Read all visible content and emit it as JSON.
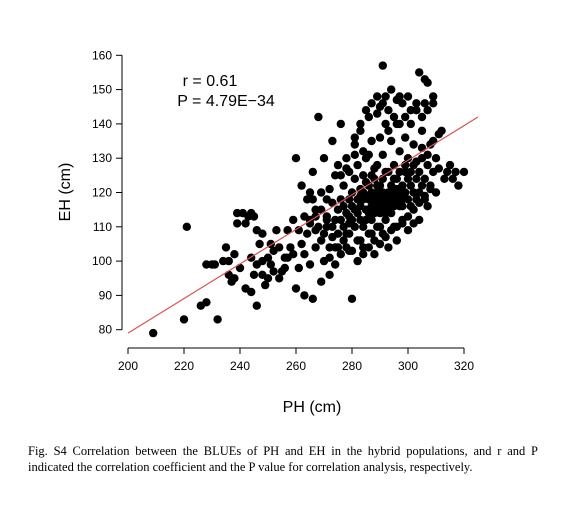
{
  "chart_data": {
    "type": "scatter",
    "xlabel": "PH (cm)",
    "ylabel": "EH (cm)",
    "xlim": [
      200,
      330
    ],
    "ylim": [
      77,
      163
    ],
    "xticks": [
      200,
      220,
      240,
      260,
      280,
      300,
      320
    ],
    "yticks": [
      80,
      90,
      100,
      110,
      120,
      130,
      140,
      150,
      160
    ],
    "annotation_r": "r = 0.61",
    "annotation_p": "P = 4.79E−34",
    "regression_line": {
      "x": [
        200,
        325
      ],
      "y": [
        79,
        142
      ],
      "color": "#d9534f"
    },
    "point_color": "#000000",
    "points": [
      [
        209,
        79
      ],
      [
        220,
        83
      ],
      [
        221,
        110
      ],
      [
        226,
        87
      ],
      [
        228,
        88
      ],
      [
        228,
        99
      ],
      [
        230,
        99
      ],
      [
        232,
        83
      ],
      [
        234,
        100
      ],
      [
        235,
        104
      ],
      [
        236,
        96
      ],
      [
        237,
        94
      ],
      [
        238,
        95
      ],
      [
        239,
        114
      ],
      [
        241,
        114
      ],
      [
        242,
        92
      ],
      [
        243,
        113
      ],
      [
        244,
        91
      ],
      [
        245,
        96
      ],
      [
        245,
        113
      ],
      [
        246,
        87
      ],
      [
        247,
        105
      ],
      [
        248,
        100
      ],
      [
        248,
        108
      ],
      [
        249,
        93
      ],
      [
        250,
        101
      ],
      [
        251,
        99
      ],
      [
        252,
        103
      ],
      [
        253,
        109
      ],
      [
        254,
        95
      ],
      [
        255,
        97
      ],
      [
        256,
        98
      ],
      [
        257,
        101
      ],
      [
        258,
        104
      ],
      [
        259,
        102
      ],
      [
        260,
        130
      ],
      [
        260,
        92
      ],
      [
        261,
        98
      ],
      [
        262,
        105
      ],
      [
        262,
        122
      ],
      [
        263,
        102
      ],
      [
        263,
        90
      ],
      [
        264,
        108
      ],
      [
        264,
        118
      ],
      [
        265,
        99
      ],
      [
        265,
        112
      ],
      [
        266,
        89
      ],
      [
        266,
        126
      ],
      [
        267,
        104
      ],
      [
        267,
        115
      ],
      [
        268,
        110
      ],
      [
        268,
        142
      ],
      [
        269,
        94
      ],
      [
        269,
        120
      ],
      [
        270,
        108
      ],
      [
        270,
        130
      ],
      [
        271,
        113
      ],
      [
        271,
        118
      ],
      [
        272,
        104
      ],
      [
        272,
        121
      ],
      [
        272,
        96
      ],
      [
        273,
        110
      ],
      [
        273,
        135
      ],
      [
        274,
        112
      ],
      [
        274,
        125
      ],
      [
        274,
        104
      ],
      [
        275,
        115
      ],
      [
        275,
        128
      ],
      [
        275,
        108
      ],
      [
        276,
        118
      ],
      [
        276,
        112
      ],
      [
        276,
        140
      ],
      [
        277,
        110
      ],
      [
        277,
        116
      ],
      [
        277,
        122
      ],
      [
        278,
        114
      ],
      [
        278,
        108
      ],
      [
        278,
        130
      ],
      [
        279,
        113
      ],
      [
        279,
        118
      ],
      [
        279,
        126
      ],
      [
        279,
        103
      ],
      [
        280,
        112
      ],
      [
        280,
        116
      ],
      [
        280,
        120
      ],
      [
        280,
        89
      ],
      [
        281,
        110
      ],
      [
        281,
        124
      ],
      [
        281,
        134
      ],
      [
        282,
        114
      ],
      [
        282,
        118
      ],
      [
        282,
        106
      ],
      [
        282,
        128
      ],
      [
        283,
        112
      ],
      [
        283,
        116
      ],
      [
        283,
        121
      ],
      [
        283,
        138
      ],
      [
        284,
        110
      ],
      [
        284,
        118
      ],
      [
        284,
        125
      ],
      [
        284,
        104
      ],
      [
        285,
        115
      ],
      [
        285,
        112
      ],
      [
        285,
        130
      ],
      [
        285,
        119
      ],
      [
        286,
        114
      ],
      [
        286,
        122
      ],
      [
        286,
        108
      ],
      [
        286,
        142
      ],
      [
        287,
        116
      ],
      [
        287,
        120
      ],
      [
        287,
        112
      ],
      [
        287,
        135
      ],
      [
        288,
        118
      ],
      [
        288,
        114
      ],
      [
        288,
        124
      ],
      [
        288,
        102
      ],
      [
        289,
        116
      ],
      [
        289,
        120
      ],
      [
        289,
        128
      ],
      [
        289,
        110
      ],
      [
        290,
        118
      ],
      [
        290,
        114
      ],
      [
        290,
        122
      ],
      [
        290,
        145
      ],
      [
        291,
        120
      ],
      [
        291,
        116
      ],
      [
        291,
        131
      ],
      [
        291,
        108
      ],
      [
        292,
        118
      ],
      [
        292,
        112
      ],
      [
        292,
        126
      ],
      [
        292,
        148
      ],
      [
        293,
        120
      ],
      [
        293,
        116
      ],
      [
        293,
        138
      ],
      [
        293,
        104
      ],
      [
        294,
        118
      ],
      [
        294,
        122
      ],
      [
        294,
        114
      ],
      [
        294,
        150
      ],
      [
        295,
        120
      ],
      [
        295,
        116
      ],
      [
        295,
        128
      ],
      [
        295,
        110
      ],
      [
        296,
        118
      ],
      [
        296,
        124
      ],
      [
        296,
        140
      ],
      [
        296,
        106
      ],
      [
        297,
        120
      ],
      [
        297,
        116
      ],
      [
        297,
        132
      ],
      [
        298,
        118
      ],
      [
        298,
        122
      ],
      [
        298,
        146
      ],
      [
        298,
        112
      ],
      [
        299,
        120
      ],
      [
        299,
        126
      ],
      [
        299,
        136
      ],
      [
        300,
        118
      ],
      [
        300,
        124
      ],
      [
        300,
        130
      ],
      [
        300,
        148
      ],
      [
        301,
        116
      ],
      [
        301,
        122
      ],
      [
        301,
        140
      ],
      [
        302,
        120
      ],
      [
        302,
        128
      ],
      [
        302,
        134
      ],
      [
        303,
        118
      ],
      [
        303,
        124
      ],
      [
        303,
        144
      ],
      [
        304,
        120
      ],
      [
        304,
        126
      ],
      [
        304,
        112
      ],
      [
        305,
        122
      ],
      [
        305,
        130
      ],
      [
        305,
        138
      ],
      [
        306,
        118
      ],
      [
        306,
        124
      ],
      [
        306,
        146
      ],
      [
        307,
        128
      ],
      [
        307,
        152
      ],
      [
        307,
        116
      ],
      [
        308,
        122
      ],
      [
        308,
        134
      ],
      [
        309,
        126
      ],
      [
        309,
        148
      ],
      [
        310,
        120
      ],
      [
        310,
        130
      ],
      [
        311,
        127
      ],
      [
        312,
        138
      ],
      [
        313,
        124
      ],
      [
        314,
        126
      ],
      [
        315,
        128
      ],
      [
        316,
        124
      ],
      [
        317,
        126
      ],
      [
        318,
        122
      ],
      [
        320,
        126
      ],
      [
        304,
        155
      ],
      [
        306,
        153
      ],
      [
        291,
        157
      ],
      [
        296,
        147
      ],
      [
        289,
        143
      ],
      [
        284,
        132
      ],
      [
        286,
        131
      ],
      [
        290,
        136
      ],
      [
        297,
        148
      ],
      [
        292,
        140
      ],
      [
        294,
        135
      ],
      [
        288,
        127
      ],
      [
        281,
        131
      ],
      [
        278,
        127
      ],
      [
        276,
        125
      ],
      [
        273,
        117
      ],
      [
        271,
        110
      ],
      [
        269,
        106
      ],
      [
        267,
        109
      ],
      [
        266,
        118
      ],
      [
        265,
        120
      ],
      [
        263,
        113
      ],
      [
        261,
        109
      ],
      [
        259,
        112
      ],
      [
        257,
        109
      ],
      [
        256,
        101
      ],
      [
        254,
        104
      ],
      [
        252,
        97
      ],
      [
        251,
        105
      ],
      [
        250,
        95
      ],
      [
        248,
        96
      ],
      [
        246,
        99
      ],
      [
        244,
        101
      ],
      [
        240,
        98
      ],
      [
        238,
        102
      ],
      [
        236,
        100
      ],
      [
        231,
        99
      ],
      [
        239,
        111
      ],
      [
        242,
        111
      ],
      [
        244,
        114
      ],
      [
        246,
        109
      ],
      [
        270,
        100
      ],
      [
        272,
        101
      ],
      [
        274,
        99
      ],
      [
        276,
        102
      ],
      [
        278,
        104
      ],
      [
        280,
        103
      ],
      [
        282,
        100
      ],
      [
        284,
        102
      ],
      [
        286,
        104
      ],
      [
        288,
        106
      ],
      [
        290,
        105
      ],
      [
        292,
        107
      ],
      [
        294,
        109
      ],
      [
        296,
        110
      ],
      [
        298,
        111
      ],
      [
        300,
        113
      ],
      [
        302,
        115
      ],
      [
        304,
        117
      ],
      [
        306,
        119
      ],
      [
        308,
        121
      ],
      [
        284,
        120
      ],
      [
        286,
        118
      ],
      [
        288,
        116
      ],
      [
        290,
        110
      ],
      [
        292,
        114
      ],
      [
        294,
        119
      ],
      [
        296,
        121
      ],
      [
        298,
        116
      ],
      [
        300,
        109
      ],
      [
        302,
        111
      ],
      [
        287,
        108
      ],
      [
        283,
        106
      ],
      [
        279,
        108
      ],
      [
        277,
        106
      ],
      [
        275,
        104
      ],
      [
        273,
        107
      ],
      [
        271,
        112
      ],
      [
        269,
        115
      ],
      [
        267,
        113
      ],
      [
        265,
        111
      ],
      [
        279,
        111
      ],
      [
        281,
        115
      ],
      [
        283,
        119
      ],
      [
        285,
        123
      ],
      [
        287,
        125
      ],
      [
        289,
        122
      ],
      [
        291,
        124
      ],
      [
        293,
        126
      ],
      [
        295,
        124
      ],
      [
        297,
        126
      ],
      [
        299,
        128
      ],
      [
        301,
        126
      ],
      [
        303,
        129
      ],
      [
        305,
        133
      ],
      [
        307,
        131
      ],
      [
        309,
        135
      ],
      [
        311,
        137
      ],
      [
        281,
        136
      ],
      [
        283,
        140
      ],
      [
        285,
        144
      ],
      [
        287,
        146
      ],
      [
        289,
        148
      ],
      [
        291,
        146
      ],
      [
        293,
        144
      ],
      [
        295,
        142
      ],
      [
        297,
        140
      ],
      [
        299,
        142
      ],
      [
        301,
        144
      ],
      [
        303,
        146
      ],
      [
        305,
        142
      ],
      [
        307,
        144
      ],
      [
        309,
        146
      ]
    ]
  },
  "caption": {
    "text": "Fig. S4 Correlation between the BLUEs of PH and EH in the hybrid populations, and r and P indicated the correlation coefficient and the P value for correlation analysis, respectively."
  }
}
